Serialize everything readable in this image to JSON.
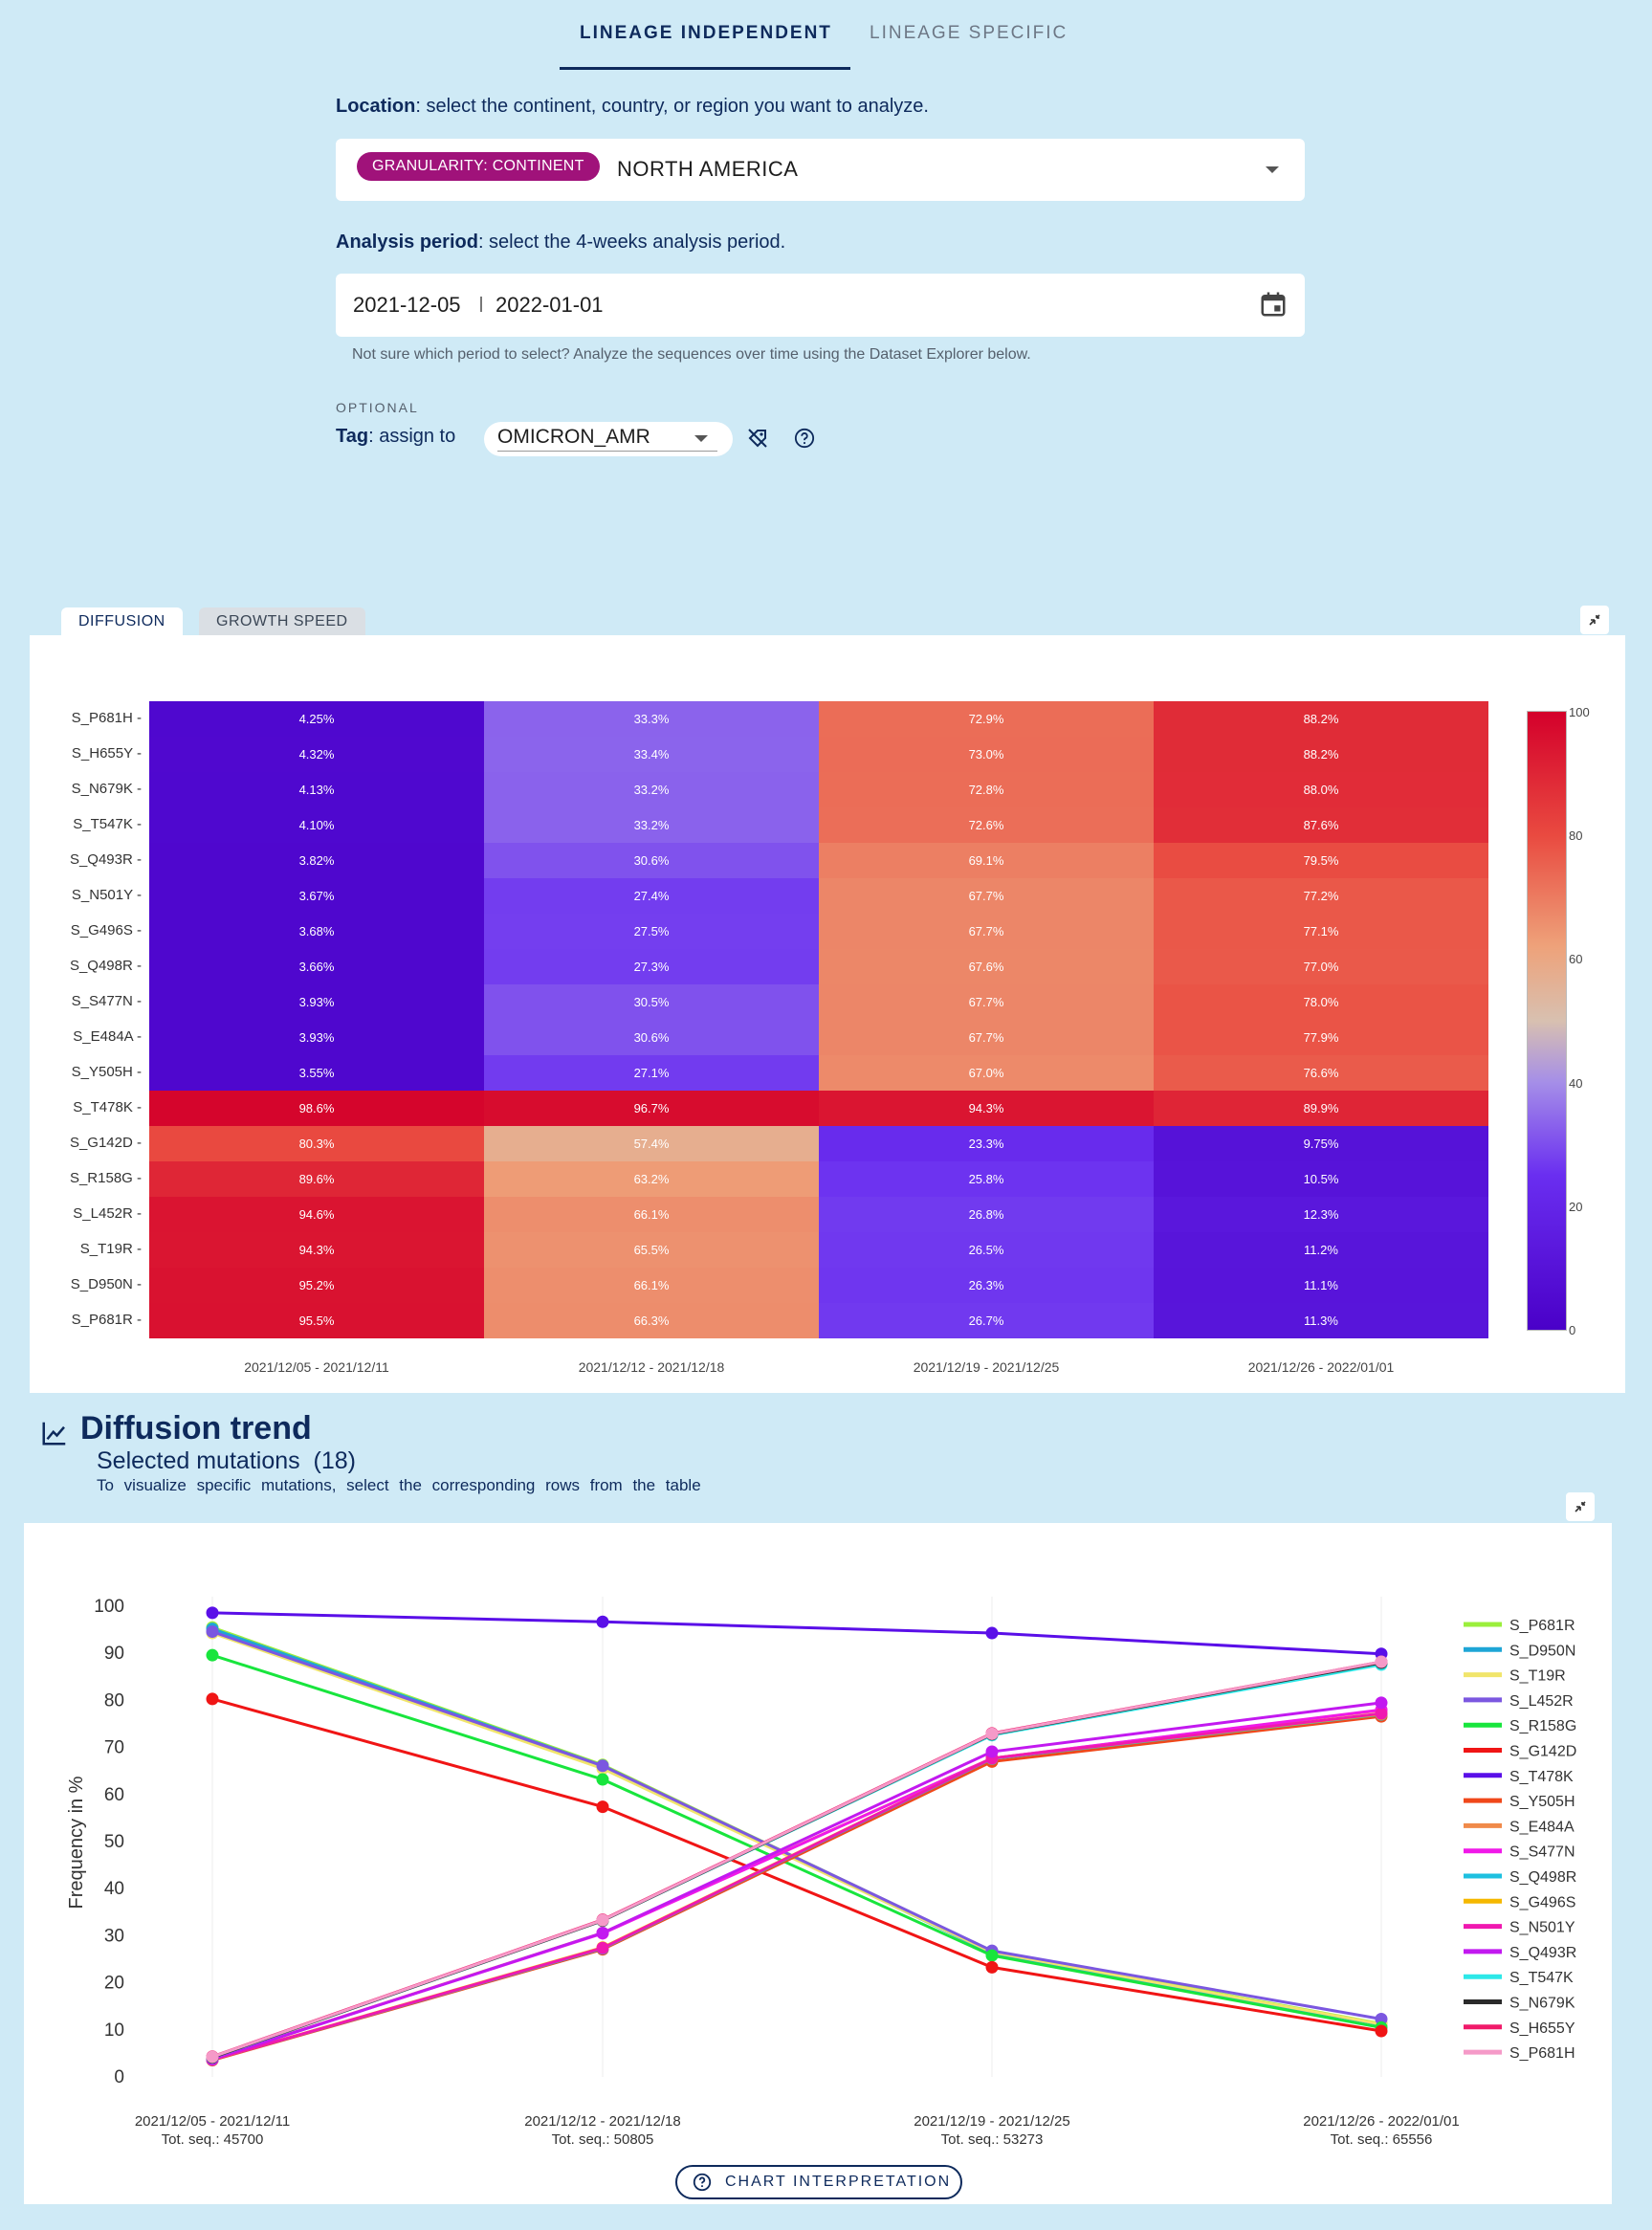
{
  "tabs": {
    "lineage_independent": "LINEAGE INDEPENDENT",
    "lineage_specific": "LINEAGE SPECIFIC"
  },
  "location": {
    "label": "Location",
    "help": ": select the continent, country, or region you want to analyze.",
    "granularity_chip": "GRANULARITY: CONTINENT",
    "value": "NORTH AMERICA"
  },
  "period": {
    "label": "Analysis period",
    "help": ": select the 4-weeks analysis period.",
    "start": "2021-12-05",
    "end": "2022-01-01",
    "hint": "Not sure which period to select? Analyze the sequences over time using the Dataset Explorer below."
  },
  "tag": {
    "optional": "OPTIONAL",
    "label": "Tag",
    "help": ": assign to",
    "value": "OMICRON_AMR"
  },
  "panel_tabs": {
    "diffusion": "DIFFUSION",
    "growth_speed": "GROWTH SPEED"
  },
  "colors": {
    "accent": "#0e2a5c",
    "chip": "#a0127a"
  },
  "heatmap": {
    "rows": [
      "S_P681H",
      "S_H655Y",
      "S_N679K",
      "S_T547K",
      "S_Q493R",
      "S_N501Y",
      "S_G496S",
      "S_Q498R",
      "S_S477N",
      "S_E484A",
      "S_Y505H",
      "S_T478K",
      "S_G142D",
      "S_R158G",
      "S_L452R",
      "S_T19R",
      "S_D950N",
      "S_P681R"
    ],
    "columns": [
      "2021/12/05 - 2021/12/11",
      "2021/12/12 - 2021/12/18",
      "2021/12/19 - 2021/12/25",
      "2021/12/26 - 2022/01/01"
    ],
    "values": [
      [
        4.25,
        33.3,
        72.9,
        88.2
      ],
      [
        4.32,
        33.4,
        73.0,
        88.2
      ],
      [
        4.13,
        33.2,
        72.8,
        88.0
      ],
      [
        4.1,
        33.2,
        72.6,
        87.6
      ],
      [
        3.82,
        30.6,
        69.1,
        79.5
      ],
      [
        3.67,
        27.4,
        67.7,
        77.2
      ],
      [
        3.68,
        27.5,
        67.7,
        77.1
      ],
      [
        3.66,
        27.3,
        67.6,
        77.0
      ],
      [
        3.93,
        30.5,
        67.7,
        78.0
      ],
      [
        3.93,
        30.6,
        67.7,
        77.9
      ],
      [
        3.55,
        27.1,
        67.0,
        76.6
      ],
      [
        98.6,
        96.7,
        94.3,
        89.9
      ],
      [
        80.3,
        57.4,
        23.3,
        9.75
      ],
      [
        89.6,
        63.2,
        25.8,
        10.5
      ],
      [
        94.6,
        66.1,
        26.8,
        12.3
      ],
      [
        94.3,
        65.5,
        26.5,
        11.2
      ],
      [
        95.2,
        66.1,
        26.3,
        11.1
      ],
      [
        95.5,
        66.3,
        26.7,
        11.3
      ]
    ],
    "labels": [
      [
        "4.25%",
        "33.3%",
        "72.9%",
        "88.2%"
      ],
      [
        "4.32%",
        "33.4%",
        "73.0%",
        "88.2%"
      ],
      [
        "4.13%",
        "33.2%",
        "72.8%",
        "88.0%"
      ],
      [
        "4.10%",
        "33.2%",
        "72.6%",
        "87.6%"
      ],
      [
        "3.82%",
        "30.6%",
        "69.1%",
        "79.5%"
      ],
      [
        "3.67%",
        "27.4%",
        "67.7%",
        "77.2%"
      ],
      [
        "3.68%",
        "27.5%",
        "67.7%",
        "77.1%"
      ],
      [
        "3.66%",
        "27.3%",
        "67.6%",
        "77.0%"
      ],
      [
        "3.93%",
        "30.5%",
        "67.7%",
        "78.0%"
      ],
      [
        "3.93%",
        "30.6%",
        "67.7%",
        "77.9%"
      ],
      [
        "3.55%",
        "27.1%",
        "67.0%",
        "76.6%"
      ],
      [
        "98.6%",
        "96.7%",
        "94.3%",
        "89.9%"
      ],
      [
        "80.3%",
        "57.4%",
        "23.3%",
        "9.75%"
      ],
      [
        "89.6%",
        "63.2%",
        "25.8%",
        "10.5%"
      ],
      [
        "94.6%",
        "66.1%",
        "26.8%",
        "12.3%"
      ],
      [
        "94.3%",
        "65.5%",
        "26.5%",
        "11.2%"
      ],
      [
        "95.2%",
        "66.1%",
        "26.3%",
        "11.1%"
      ],
      [
        "95.5%",
        "66.3%",
        "26.7%",
        "11.3%"
      ]
    ],
    "colorbar_ticks": [
      "100",
      "80",
      "60",
      "40",
      "20",
      "0"
    ]
  },
  "trend": {
    "title": "Diffusion trend",
    "subtitle": "Selected mutations",
    "count": "(18)",
    "hint": "To visualize specific mutations, select the corresponding rows from the table",
    "button": "CHART INTERPRETATION"
  },
  "chart_data": {
    "type": "line",
    "ylabel": "Frequency in %",
    "ylim": [
      0,
      100
    ],
    "yticks": [
      "100",
      "90",
      "80",
      "70",
      "60",
      "50",
      "40",
      "30",
      "20",
      "10",
      "0"
    ],
    "x": [
      "2021/12/05 - 2021/12/11",
      "2021/12/12 - 2021/12/18",
      "2021/12/19 - 2021/12/25",
      "2021/12/26 - 2022/01/01"
    ],
    "tot_seq": [
      "Tot. seq.: 45700",
      "Tot. seq.: 50805",
      "Tot. seq.: 53273",
      "Tot. seq.: 65556"
    ],
    "legend_position": "right",
    "series": [
      {
        "name": "S_P681R",
        "color": "#9bef3c",
        "values": [
          95.5,
          66.3,
          26.7,
          11.3
        ]
      },
      {
        "name": "S_D950N",
        "color": "#1ea5d6",
        "values": [
          95.2,
          66.1,
          26.3,
          11.1
        ]
      },
      {
        "name": "S_T19R",
        "color": "#f1e56b",
        "values": [
          94.3,
          65.5,
          26.5,
          11.2
        ]
      },
      {
        "name": "S_L452R",
        "color": "#7b57e0",
        "values": [
          94.6,
          66.1,
          26.8,
          12.3
        ]
      },
      {
        "name": "S_R158G",
        "color": "#18e53d",
        "values": [
          89.6,
          63.2,
          25.8,
          10.5
        ]
      },
      {
        "name": "S_G142D",
        "color": "#f01515",
        "values": [
          80.3,
          57.4,
          23.3,
          9.75
        ]
      },
      {
        "name": "S_T478K",
        "color": "#5a0fe8",
        "values": [
          98.6,
          96.7,
          94.3,
          89.9
        ]
      },
      {
        "name": "S_Y505H",
        "color": "#f0481a",
        "values": [
          3.55,
          27.1,
          67.0,
          76.6
        ]
      },
      {
        "name": "S_E484A",
        "color": "#f08a4a",
        "values": [
          3.93,
          30.6,
          67.7,
          77.9
        ]
      },
      {
        "name": "S_S477N",
        "color": "#f019e8",
        "values": [
          3.93,
          30.5,
          67.7,
          78.0
        ]
      },
      {
        "name": "S_Q498R",
        "color": "#1ec0e0",
        "values": [
          3.66,
          27.3,
          67.6,
          77.0
        ]
      },
      {
        "name": "S_G496S",
        "color": "#f5b800",
        "values": [
          3.68,
          27.5,
          67.7,
          77.1
        ]
      },
      {
        "name": "S_N501Y",
        "color": "#f019b0",
        "values": [
          3.67,
          27.4,
          67.7,
          77.2
        ]
      },
      {
        "name": "S_Q493R",
        "color": "#c219f0",
        "values": [
          3.82,
          30.6,
          69.1,
          79.5
        ]
      },
      {
        "name": "S_T547K",
        "color": "#2de8e8",
        "values": [
          4.1,
          33.2,
          72.6,
          87.6
        ]
      },
      {
        "name": "S_N679K",
        "color": "#2a2a2a",
        "values": [
          4.13,
          33.2,
          72.8,
          88.0
        ]
      },
      {
        "name": "S_H655Y",
        "color": "#f01a6a",
        "values": [
          4.32,
          33.4,
          73.0,
          88.2
        ]
      },
      {
        "name": "S_P681H",
        "color": "#f59ac8",
        "values": [
          4.25,
          33.3,
          72.9,
          88.2
        ]
      }
    ]
  }
}
